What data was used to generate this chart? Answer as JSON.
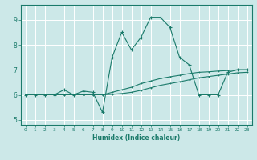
{
  "xlabel": "Humidex (Indice chaleur)",
  "ylabel": "",
  "bg_color": "#cce8e8",
  "grid_color": "#ffffff",
  "line_color": "#1a7a6a",
  "xlim": [
    -0.5,
    23.5
  ],
  "ylim": [
    4.8,
    9.6
  ],
  "yticks": [
    5,
    6,
    7,
    8,
    9
  ],
  "xticks": [
    0,
    1,
    2,
    3,
    4,
    5,
    6,
    7,
    8,
    9,
    10,
    11,
    12,
    13,
    14,
    15,
    16,
    17,
    18,
    19,
    20,
    21,
    22,
    23
  ],
  "series1_x": [
    0,
    1,
    2,
    3,
    4,
    5,
    6,
    7,
    8,
    9,
    10,
    11,
    12,
    13,
    14,
    15,
    16,
    17,
    18,
    19,
    20,
    21,
    22,
    23
  ],
  "series1_y": [
    6.0,
    6.0,
    6.0,
    6.0,
    6.2,
    6.0,
    6.15,
    6.1,
    5.3,
    7.5,
    8.5,
    7.8,
    8.3,
    9.1,
    9.1,
    8.7,
    7.5,
    7.2,
    6.0,
    6.0,
    6.0,
    6.9,
    7.0,
    7.0
  ],
  "series2_x": [
    0,
    1,
    2,
    3,
    4,
    5,
    6,
    7,
    8,
    9,
    10,
    11,
    12,
    13,
    14,
    15,
    16,
    17,
    18,
    19,
    20,
    21,
    22,
    23
  ],
  "series2_y": [
    6.0,
    6.0,
    6.0,
    6.0,
    6.0,
    6.0,
    6.0,
    6.0,
    6.0,
    6.1,
    6.2,
    6.3,
    6.45,
    6.55,
    6.65,
    6.72,
    6.78,
    6.85,
    6.9,
    6.92,
    6.95,
    6.97,
    7.0,
    7.0
  ],
  "series3_x": [
    0,
    1,
    2,
    3,
    4,
    5,
    6,
    7,
    8,
    9,
    10,
    11,
    12,
    13,
    14,
    15,
    16,
    17,
    18,
    19,
    20,
    21,
    22,
    23
  ],
  "series3_y": [
    6.0,
    6.0,
    6.0,
    6.0,
    6.0,
    6.0,
    6.0,
    6.0,
    6.0,
    6.02,
    6.05,
    6.1,
    6.18,
    6.28,
    6.38,
    6.45,
    6.52,
    6.6,
    6.68,
    6.73,
    6.78,
    6.83,
    6.88,
    6.9
  ]
}
